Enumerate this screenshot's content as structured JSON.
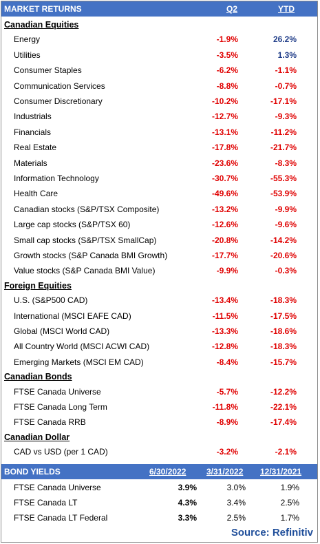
{
  "header": {
    "title": "MARKET RETURNS",
    "col1": "Q2",
    "col2": "YTD"
  },
  "sections": [
    {
      "title": "Canadian Equities",
      "rows": [
        {
          "label": "Energy",
          "q2": "-1.9%",
          "ytd": "26.2%"
        },
        {
          "label": "Utilities",
          "q2": "-3.5%",
          "ytd": "1.3%"
        },
        {
          "label": "Consumer Staples",
          "q2": "-6.2%",
          "ytd": "-1.1%"
        },
        {
          "label": "Communication Services",
          "q2": "-8.8%",
          "ytd": "-0.7%"
        },
        {
          "label": "Consumer Discretionary",
          "q2": "-10.2%",
          "ytd": "-17.1%"
        },
        {
          "label": "Industrials",
          "q2": "-12.7%",
          "ytd": "-9.3%"
        },
        {
          "label": "Financials",
          "q2": "-13.1%",
          "ytd": "-11.2%"
        },
        {
          "label": "Real Estate",
          "q2": "-17.8%",
          "ytd": "-21.7%"
        },
        {
          "label": "Materials",
          "q2": "-23.6%",
          "ytd": "-8.3%"
        },
        {
          "label": "Information Technology",
          "q2": "-30.7%",
          "ytd": "-55.3%"
        },
        {
          "label": "Health Care",
          "q2": "-49.6%",
          "ytd": "-53.9%"
        },
        {
          "label": "Canadian stocks (S&P/TSX Composite)",
          "q2": "-13.2%",
          "ytd": "-9.9%"
        },
        {
          "label": "Large cap stocks (S&P/TSX 60)",
          "q2": "-12.6%",
          "ytd": "-9.6%"
        },
        {
          "label": "Small cap stocks (S&P/TSX SmallCap)",
          "q2": "-20.8%",
          "ytd": "-14.2%"
        },
        {
          "label": "Growth stocks (S&P Canada BMI Growth)",
          "q2": "-17.7%",
          "ytd": "-20.6%"
        },
        {
          "label": "Value stocks (S&P Canada BMI Value)",
          "q2": "-9.9%",
          "ytd": "-0.3%"
        }
      ]
    },
    {
      "title": "Foreign Equities",
      "rows": [
        {
          "label": "U.S. (S&P500 CAD)",
          "q2": "-13.4%",
          "ytd": "-18.3%"
        },
        {
          "label": "International (MSCI EAFE CAD)",
          "q2": "-11.5%",
          "ytd": "-17.5%"
        },
        {
          "label": "Global (MSCI World CAD)",
          "q2": "-13.3%",
          "ytd": "-18.6%"
        },
        {
          "label": "All Country World (MSCI ACWI CAD)",
          "q2": "-12.8%",
          "ytd": "-18.3%"
        },
        {
          "label": "Emerging Markets (MSCI EM CAD)",
          "q2": "-8.4%",
          "ytd": "-15.7%"
        }
      ]
    },
    {
      "title": "Canadian Bonds",
      "rows": [
        {
          "label": "FTSE Canada Universe",
          "q2": "-5.7%",
          "ytd": "-12.2%"
        },
        {
          "label": "FTSE Canada Long Term",
          "q2": "-11.8%",
          "ytd": "-22.1%"
        },
        {
          "label": "FTSE Canada RRB",
          "q2": "-8.9%",
          "ytd": "-17.4%"
        }
      ]
    },
    {
      "title": "Canadian Dollar",
      "rows": [
        {
          "label": "CAD vs USD (per 1 CAD)",
          "q2": "-3.2%",
          "ytd": "-2.1%"
        }
      ]
    }
  ],
  "bond_yields": {
    "title": "BOND YIELDS",
    "col1": "6/30/2022",
    "col2": "3/31/2022",
    "col3": "12/31/2021",
    "rows": [
      {
        "label": "FTSE Canada Universe",
        "v1": "3.9%",
        "v2": "3.0%",
        "v3": "1.9%"
      },
      {
        "label": "FTSE Canada LT",
        "v1": "4.3%",
        "v2": "3.4%",
        "v3": "2.5%"
      },
      {
        "label": "FTSE Canada LT Federal",
        "v1": "3.3%",
        "v2": "2.5%",
        "v3": "1.7%"
      }
    ]
  },
  "source": "Source: Refinitiv",
  "colors": {
    "header_bg": "#4472c4",
    "negative": "#e00000",
    "positive": "#1f3c88",
    "source": "#1f4e9a"
  }
}
